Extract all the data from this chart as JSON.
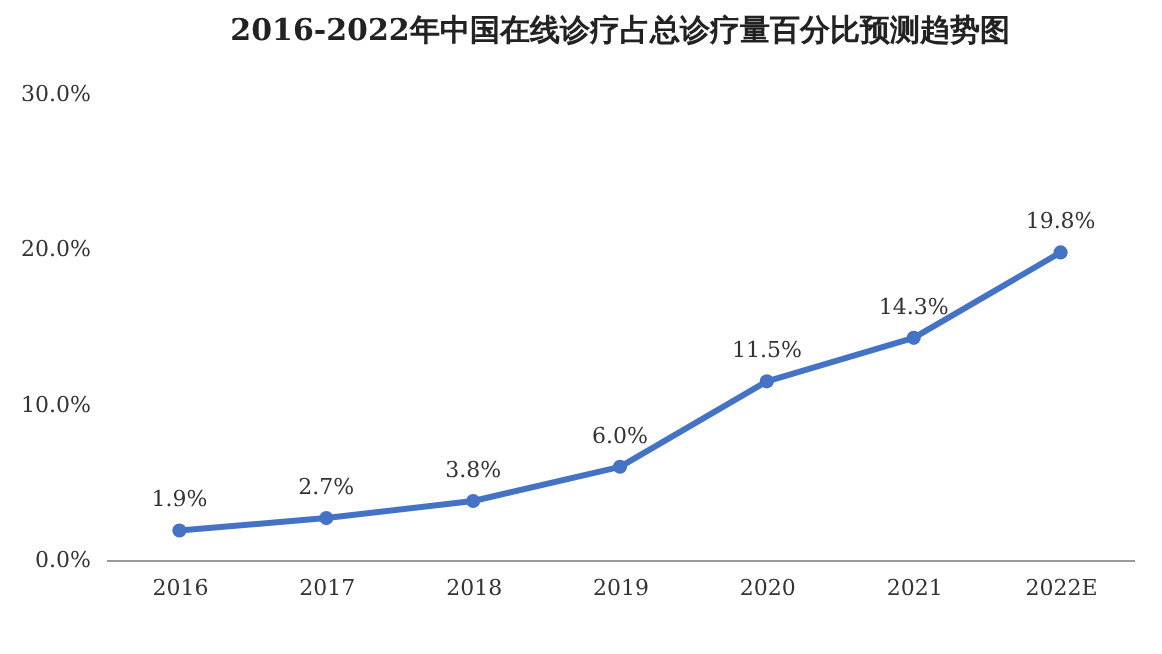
{
  "chart_data": {
    "type": "line",
    "title": "2016-2022年中国在线诊疗占总诊疗量百分比预测趋势图",
    "categories": [
      "2016",
      "2017",
      "2018",
      "2019",
      "2020",
      "2021",
      "2022E"
    ],
    "series": [
      {
        "color": "#4472c4",
        "values": [
          1.9,
          2.7,
          3.8,
          6.0,
          11.5,
          14.3,
          19.8
        ],
        "value_labels": [
          "1.9%",
          "2.7%",
          "3.8%",
          "6.0%",
          "11.5%",
          "14.3%",
          "19.8%"
        ]
      }
    ],
    "ylim": [
      0,
      30
    ],
    "yticks": [
      {
        "value": 0,
        "label": "0.0%"
      },
      {
        "value": 10,
        "label": "10.0%"
      },
      {
        "value": 20,
        "label": "20.0%"
      },
      {
        "value": 30,
        "label": "30.0%"
      }
    ],
    "marker": "circle"
  }
}
